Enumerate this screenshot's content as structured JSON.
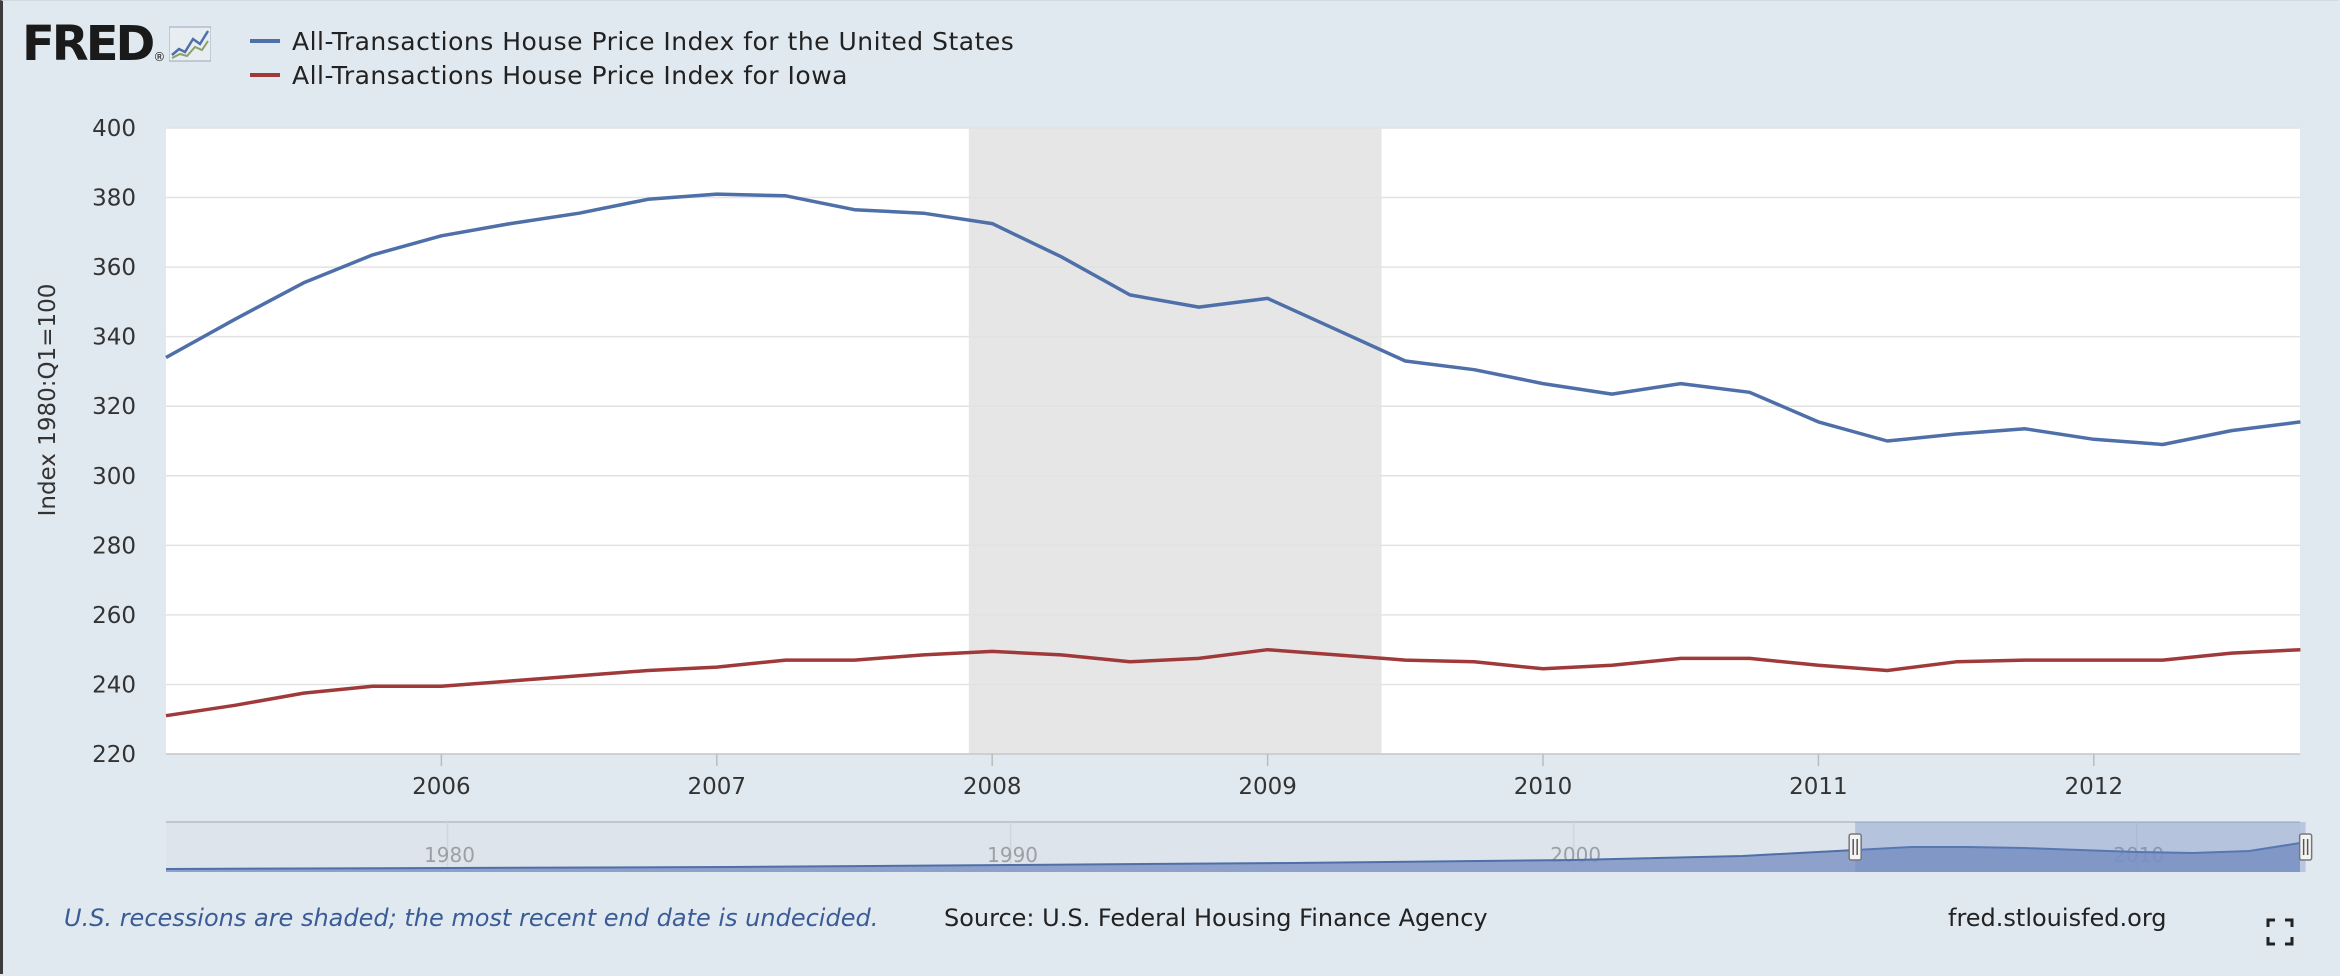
{
  "logo": {
    "text": "FRED",
    "registered": "®"
  },
  "legend": [
    {
      "label": "All-Transactions House Price Index for the United States",
      "color": "#4e6fa8"
    },
    {
      "label": "All-Transactions House Price Index for Iowa",
      "color": "#a03a3a"
    }
  ],
  "footer": {
    "note": "U.S. recessions are shaded; the most recent end date is undecided.",
    "source": "Source: U.S. Federal Housing Finance Agency",
    "site": "fred.stlouisfed.org"
  },
  "colors": {
    "background": "#e1e9f0",
    "recession": "#e6e6e6",
    "navigator": "#7f95c4"
  },
  "chart_data": {
    "type": "line",
    "ylabel": "Index 1980:Q1=100",
    "xlabel": "",
    "ylim": [
      220,
      400
    ],
    "yticks": [
      220,
      240,
      260,
      280,
      300,
      320,
      340,
      360,
      380,
      400
    ],
    "xlim": [
      "2005-01-01",
      "2012-10-01"
    ],
    "xticks": [
      "2006",
      "2007",
      "2008",
      "2009",
      "2010",
      "2011",
      "2012"
    ],
    "grid": true,
    "legend_position": "top-left",
    "recessions": [
      {
        "start": "2007-12-01",
        "end": "2009-06-01"
      }
    ],
    "x": [
      "2005 Q1",
      "2005 Q2",
      "2005 Q3",
      "2005 Q4",
      "2006 Q1",
      "2006 Q2",
      "2006 Q3",
      "2006 Q4",
      "2007 Q1",
      "2007 Q2",
      "2007 Q3",
      "2007 Q4",
      "2008 Q1",
      "2008 Q2",
      "2008 Q3",
      "2008 Q4",
      "2009 Q1",
      "2009 Q2",
      "2009 Q3",
      "2009 Q4",
      "2010 Q1",
      "2010 Q2",
      "2010 Q3",
      "2010 Q4",
      "2011 Q1",
      "2011 Q2",
      "2011 Q3",
      "2011 Q4",
      "2012 Q1",
      "2012 Q2",
      "2012 Q3",
      "2012 Q4"
    ],
    "series": [
      {
        "name": "All-Transactions House Price Index for the United States",
        "color": "#4e6fa8",
        "values": [
          334.0,
          345.0,
          355.5,
          363.5,
          369.0,
          372.5,
          375.5,
          379.5,
          381.0,
          380.5,
          376.5,
          375.5,
          372.5,
          363.0,
          352.0,
          348.5,
          351.0,
          342.0,
          333.0,
          330.5,
          326.5,
          323.5,
          326.5,
          324.0,
          315.5,
          310.0,
          312.0,
          313.5,
          310.5,
          309.0,
          313.0,
          315.5
        ]
      },
      {
        "name": "All-Transactions House Price Index for Iowa",
        "color": "#a03a3a",
        "values": [
          231.0,
          234.0,
          237.5,
          239.5,
          239.5,
          241.0,
          242.5,
          244.0,
          245.0,
          247.0,
          247.0,
          248.5,
          249.5,
          248.5,
          246.5,
          247.5,
          250.0,
          248.5,
          247.0,
          246.5,
          244.5,
          245.5,
          247.5,
          247.5,
          245.5,
          244.0,
          246.5,
          247.0,
          247.0,
          247.0,
          249.0,
          250.0
        ]
      }
    ],
    "navigator": {
      "labels": [
        "1980",
        "1990",
        "2000",
        "2010"
      ],
      "range_start": "2005 Q1",
      "range_end": "2012 Q4"
    }
  }
}
